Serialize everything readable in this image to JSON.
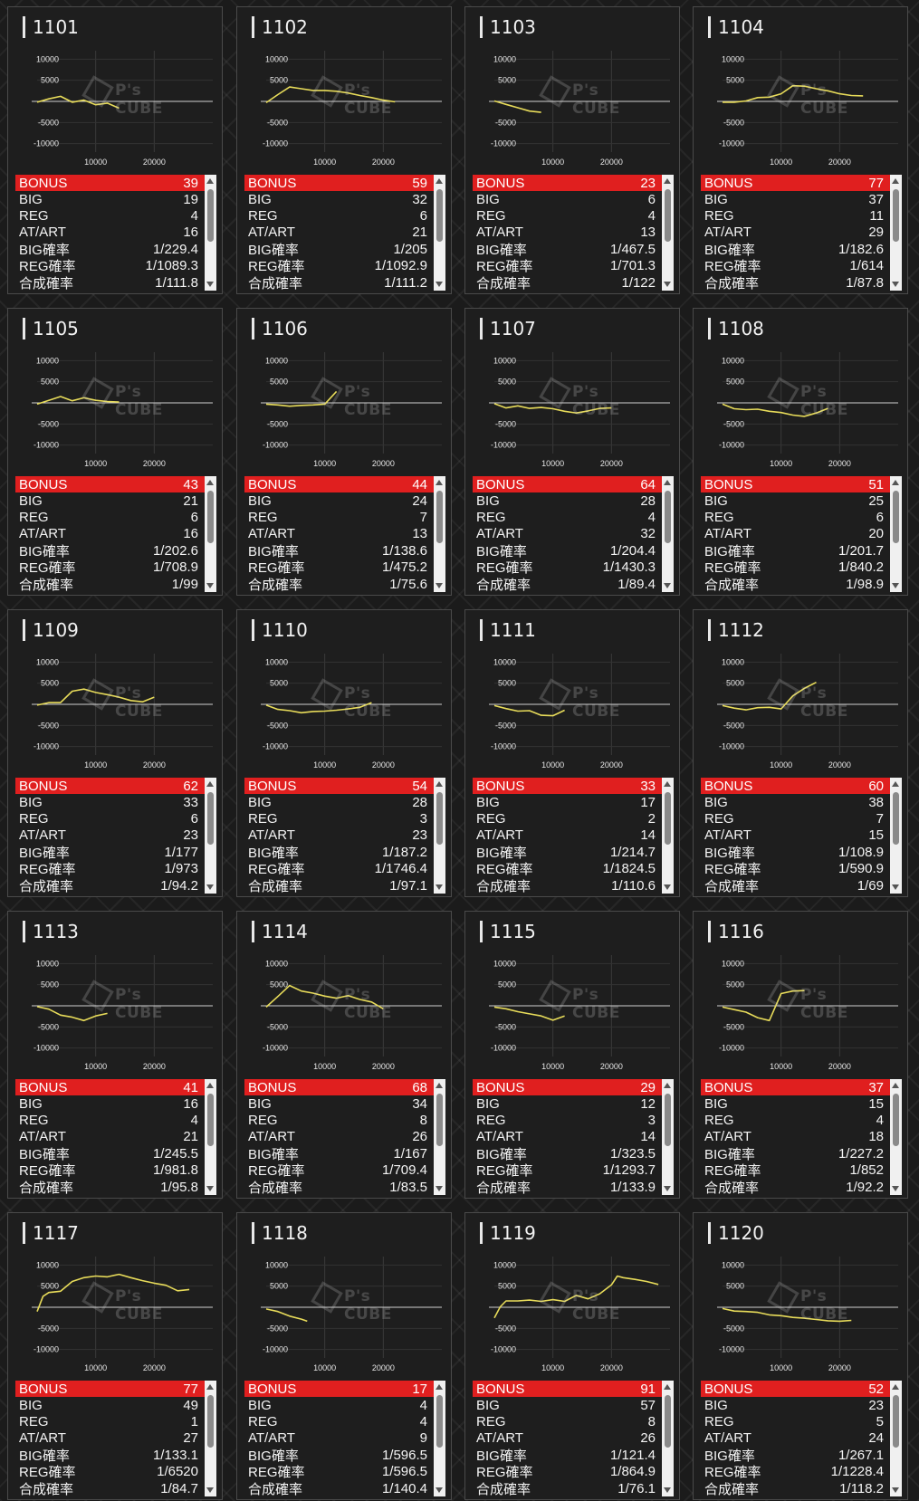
{
  "labels": {
    "bonus": "BONUS",
    "big": "BIG",
    "reg": "REG",
    "atart": "AT/ART",
    "big_prob": "BIG確率",
    "reg_prob": "REG確率",
    "total_prob": "合成確率"
  },
  "watermark": "P's CUBE",
  "chart_axis": {
    "y_ticks": [
      "10000",
      "5000",
      "-5000",
      "-10000"
    ],
    "x_ticks": [
      "10000",
      "20000"
    ]
  },
  "colors": {
    "line": "#e8dc5a",
    "bonus_bar": "#e01f1f",
    "card_bg": "#1e1e1e"
  },
  "chart_data": [
    {
      "type": "line",
      "title": "1101",
      "x": [
        0,
        2000,
        4000,
        6000,
        8000,
        10000,
        12000,
        14000
      ],
      "y": [
        -200,
        600,
        1200,
        -200,
        300,
        -800,
        -400,
        -1600
      ],
      "ylim": [
        -12000,
        12000
      ],
      "xlim": [
        0,
        30000
      ]
    },
    {
      "type": "line",
      "title": "1102",
      "x": [
        0,
        2000,
        4000,
        6000,
        8000,
        10000,
        12000,
        14000,
        16000,
        18000,
        20000,
        22000
      ],
      "y": [
        -300,
        1600,
        3400,
        3000,
        2600,
        2600,
        2400,
        2000,
        1400,
        900,
        300,
        -100
      ],
      "ylim": [
        -12000,
        12000
      ],
      "xlim": [
        0,
        30000
      ]
    },
    {
      "type": "line",
      "title": "1103",
      "x": [
        0,
        2000,
        4000,
        6000,
        8000
      ],
      "y": [
        100,
        -700,
        -1500,
        -2300,
        -2600
      ],
      "ylim": [
        -12000,
        12000
      ],
      "xlim": [
        0,
        30000
      ]
    },
    {
      "type": "line",
      "title": "1104",
      "x": [
        0,
        2000,
        4000,
        6000,
        8000,
        10000,
        12000,
        14000,
        16000,
        18000,
        20000,
        22000,
        24000
      ],
      "y": [
        -200,
        -200,
        100,
        900,
        1000,
        1800,
        3700,
        3600,
        3000,
        2500,
        1800,
        1400,
        1300
      ],
      "ylim": [
        -12000,
        12000
      ],
      "xlim": [
        0,
        30000
      ]
    },
    {
      "type": "line",
      "title": "1105",
      "x": [
        0,
        2000,
        4000,
        6000,
        8000,
        10000,
        12000,
        14000
      ],
      "y": [
        -300,
        600,
        1500,
        500,
        1200,
        600,
        300,
        200
      ],
      "ylim": [
        -12000,
        12000
      ],
      "xlim": [
        0,
        30000
      ]
    },
    {
      "type": "line",
      "title": "1106",
      "x": [
        0,
        2000,
        4000,
        6000,
        8000,
        10000,
        12000
      ],
      "y": [
        -300,
        -500,
        -800,
        -600,
        -500,
        -300,
        2700
      ],
      "ylim": [
        -12000,
        12000
      ],
      "xlim": [
        0,
        30000
      ]
    },
    {
      "type": "line",
      "title": "1107",
      "x": [
        0,
        2000,
        4000,
        6000,
        8000,
        10000,
        12000,
        14000,
        16000,
        18000,
        20000
      ],
      "y": [
        -200,
        -1200,
        -700,
        -1300,
        -1100,
        -1400,
        -2000,
        -2400,
        -1900,
        -1300,
        -1200
      ],
      "ylim": [
        -12000,
        12000
      ],
      "xlim": [
        0,
        30000
      ]
    },
    {
      "type": "line",
      "title": "1108",
      "x": [
        0,
        2000,
        4000,
        6000,
        8000,
        10000,
        12000,
        14000,
        16000,
        18000
      ],
      "y": [
        -300,
        -1400,
        -1600,
        -1500,
        -2000,
        -2300,
        -2900,
        -3200,
        -2400,
        -1300
      ],
      "ylim": [
        -12000,
        12000
      ],
      "xlim": [
        0,
        30000
      ]
    },
    {
      "type": "line",
      "title": "1109",
      "x": [
        0,
        2000,
        4000,
        6000,
        8000,
        10000,
        12000,
        14000,
        16000,
        18000,
        20000
      ],
      "y": [
        -200,
        400,
        400,
        3100,
        3600,
        2800,
        2300,
        1700,
        900,
        600,
        1700
      ],
      "ylim": [
        -12000,
        12000
      ],
      "xlim": [
        0,
        30000
      ]
    },
    {
      "type": "line",
      "title": "1110",
      "x": [
        0,
        2000,
        4000,
        6000,
        8000,
        10000,
        12000,
        14000,
        16000,
        18000
      ],
      "y": [
        -200,
        -1200,
        -1500,
        -2000,
        -1700,
        -1600,
        -1400,
        -1100,
        -700,
        400
      ],
      "ylim": [
        -12000,
        12000
      ],
      "xlim": [
        0,
        30000
      ]
    },
    {
      "type": "line",
      "title": "1111",
      "x": [
        0,
        2000,
        4000,
        6000,
        8000,
        10000,
        12000
      ],
      "y": [
        -300,
        -1000,
        -1600,
        -1500,
        -2600,
        -2700,
        -1400
      ],
      "ylim": [
        -12000,
        12000
      ],
      "xlim": [
        0,
        30000
      ]
    },
    {
      "type": "line",
      "title": "1112",
      "x": [
        0,
        2000,
        4000,
        6000,
        8000,
        10000,
        12000,
        14000,
        16000
      ],
      "y": [
        -300,
        -900,
        -1300,
        -800,
        -700,
        -1100,
        2000,
        3800,
        5200
      ],
      "ylim": [
        -12000,
        12000
      ],
      "xlim": [
        0,
        30000
      ]
    },
    {
      "type": "line",
      "title": "1113",
      "x": [
        0,
        2000,
        4000,
        6000,
        8000,
        10000,
        12000
      ],
      "y": [
        -200,
        -800,
        -2200,
        -2700,
        -3500,
        -2400,
        -1800
      ],
      "ylim": [
        -12000,
        12000
      ],
      "xlim": [
        0,
        30000
      ]
    },
    {
      "type": "line",
      "title": "1114",
      "x": [
        0,
        2000,
        4000,
        6000,
        8000,
        10000,
        12000,
        14000,
        16000,
        18000,
        20000
      ],
      "y": [
        -300,
        2200,
        4800,
        3500,
        3000,
        2300,
        1800,
        2400,
        1500,
        900,
        -700
      ],
      "ylim": [
        -12000,
        12000
      ],
      "xlim": [
        0,
        30000
      ]
    },
    {
      "type": "line",
      "title": "1115",
      "x": [
        0,
        2000,
        4000,
        6000,
        8000,
        10000,
        12000
      ],
      "y": [
        -300,
        -700,
        -1400,
        -1900,
        -2400,
        -3400,
        -2400
      ],
      "ylim": [
        -12000,
        12000
      ],
      "xlim": [
        0,
        30000
      ]
    },
    {
      "type": "line",
      "title": "1116",
      "x": [
        0,
        2000,
        4000,
        6000,
        8000,
        10000,
        12000,
        14000
      ],
      "y": [
        -300,
        -900,
        -1500,
        -2800,
        -3500,
        2900,
        3500,
        3600
      ],
      "ylim": [
        -12000,
        12000
      ],
      "xlim": [
        0,
        30000
      ]
    },
    {
      "type": "line",
      "title": "1117",
      "x": [
        0,
        1000,
        2000,
        4000,
        6000,
        8000,
        10000,
        12000,
        14000,
        16000,
        18000,
        20000,
        22000,
        24000,
        26000
      ],
      "y": [
        -1000,
        2600,
        3500,
        3800,
        6100,
        7000,
        7400,
        7200,
        7800,
        7000,
        6300,
        5700,
        5200,
        3900,
        4200
      ],
      "ylim": [
        -12000,
        12000
      ],
      "xlim": [
        0,
        30000
      ]
    },
    {
      "type": "line",
      "title": "1118",
      "x": [
        0,
        2000,
        4000,
        6000,
        7000
      ],
      "y": [
        -400,
        -1000,
        -2100,
        -2800,
        -3300
      ],
      "ylim": [
        -12000,
        12000
      ],
      "xlim": [
        0,
        30000
      ]
    },
    {
      "type": "line",
      "title": "1119",
      "x": [
        0,
        1000,
        2000,
        4000,
        6000,
        8000,
        10000,
        12000,
        14000,
        16000,
        18000,
        20000,
        21000,
        22000,
        24000,
        26000,
        28000
      ],
      "y": [
        -2500,
        100,
        1500,
        1500,
        1700,
        1400,
        1800,
        1400,
        2800,
        2000,
        3200,
        5300,
        7400,
        7000,
        6600,
        6100,
        5400
      ],
      "ylim": [
        -12000,
        12000
      ],
      "xlim": [
        0,
        30000
      ]
    },
    {
      "type": "line",
      "title": "1120",
      "x": [
        0,
        2000,
        4000,
        6000,
        8000,
        10000,
        12000,
        14000,
        16000,
        18000,
        20000,
        22000
      ],
      "y": [
        -300,
        -900,
        -1000,
        -1200,
        -1800,
        -2000,
        -2400,
        -2600,
        -2900,
        -3200,
        -3300,
        -3100
      ],
      "ylim": [
        -12000,
        12000
      ],
      "xlim": [
        0,
        30000
      ]
    }
  ],
  "machines": [
    {
      "id": "1101",
      "bonus": "39",
      "big": "19",
      "reg": "4",
      "atart": "16",
      "big_prob": "1/229.4",
      "reg_prob": "1/1089.3",
      "total_prob": "1/111.8"
    },
    {
      "id": "1102",
      "bonus": "59",
      "big": "32",
      "reg": "6",
      "atart": "21",
      "big_prob": "1/205",
      "reg_prob": "1/1092.9",
      "total_prob": "1/111.2"
    },
    {
      "id": "1103",
      "bonus": "23",
      "big": "6",
      "reg": "4",
      "atart": "13",
      "big_prob": "1/467.5",
      "reg_prob": "1/701.3",
      "total_prob": "1/122"
    },
    {
      "id": "1104",
      "bonus": "77",
      "big": "37",
      "reg": "11",
      "atart": "29",
      "big_prob": "1/182.6",
      "reg_prob": "1/614",
      "total_prob": "1/87.8"
    },
    {
      "id": "1105",
      "bonus": "43",
      "big": "21",
      "reg": "6",
      "atart": "16",
      "big_prob": "1/202.6",
      "reg_prob": "1/708.9",
      "total_prob": "1/99"
    },
    {
      "id": "1106",
      "bonus": "44",
      "big": "24",
      "reg": "7",
      "atart": "13",
      "big_prob": "1/138.6",
      "reg_prob": "1/475.2",
      "total_prob": "1/75.6"
    },
    {
      "id": "1107",
      "bonus": "64",
      "big": "28",
      "reg": "4",
      "atart": "32",
      "big_prob": "1/204.4",
      "reg_prob": "1/1430.3",
      "total_prob": "1/89.4"
    },
    {
      "id": "1108",
      "bonus": "51",
      "big": "25",
      "reg": "6",
      "atart": "20",
      "big_prob": "1/201.7",
      "reg_prob": "1/840.2",
      "total_prob": "1/98.9"
    },
    {
      "id": "1109",
      "bonus": "62",
      "big": "33",
      "reg": "6",
      "atart": "23",
      "big_prob": "1/177",
      "reg_prob": "1/973",
      "total_prob": "1/94.2"
    },
    {
      "id": "1110",
      "bonus": "54",
      "big": "28",
      "reg": "3",
      "atart": "23",
      "big_prob": "1/187.2",
      "reg_prob": "1/1746.4",
      "total_prob": "1/97.1"
    },
    {
      "id": "1111",
      "bonus": "33",
      "big": "17",
      "reg": "2",
      "atart": "14",
      "big_prob": "1/214.7",
      "reg_prob": "1/1824.5",
      "total_prob": "1/110.6"
    },
    {
      "id": "1112",
      "bonus": "60",
      "big": "38",
      "reg": "7",
      "atart": "15",
      "big_prob": "1/108.9",
      "reg_prob": "1/590.9",
      "total_prob": "1/69"
    },
    {
      "id": "1113",
      "bonus": "41",
      "big": "16",
      "reg": "4",
      "atart": "21",
      "big_prob": "1/245.5",
      "reg_prob": "1/981.8",
      "total_prob": "1/95.8"
    },
    {
      "id": "1114",
      "bonus": "68",
      "big": "34",
      "reg": "8",
      "atart": "26",
      "big_prob": "1/167",
      "reg_prob": "1/709.4",
      "total_prob": "1/83.5"
    },
    {
      "id": "1115",
      "bonus": "29",
      "big": "12",
      "reg": "3",
      "atart": "14",
      "big_prob": "1/323.5",
      "reg_prob": "1/1293.7",
      "total_prob": "1/133.9"
    },
    {
      "id": "1116",
      "bonus": "37",
      "big": "15",
      "reg": "4",
      "atart": "18",
      "big_prob": "1/227.2",
      "reg_prob": "1/852",
      "total_prob": "1/92.2"
    },
    {
      "id": "1117",
      "bonus": "77",
      "big": "49",
      "reg": "1",
      "atart": "27",
      "big_prob": "1/133.1",
      "reg_prob": "1/6520",
      "total_prob": "1/84.7"
    },
    {
      "id": "1118",
      "bonus": "17",
      "big": "4",
      "reg": "4",
      "atart": "9",
      "big_prob": "1/596.5",
      "reg_prob": "1/596.5",
      "total_prob": "1/140.4"
    },
    {
      "id": "1119",
      "bonus": "91",
      "big": "57",
      "reg": "8",
      "atart": "26",
      "big_prob": "1/121.4",
      "reg_prob": "1/864.9",
      "total_prob": "1/76.1"
    },
    {
      "id": "1120",
      "bonus": "52",
      "big": "23",
      "reg": "5",
      "atart": "24",
      "big_prob": "1/267.1",
      "reg_prob": "1/1228.4",
      "total_prob": "1/118.2"
    }
  ]
}
